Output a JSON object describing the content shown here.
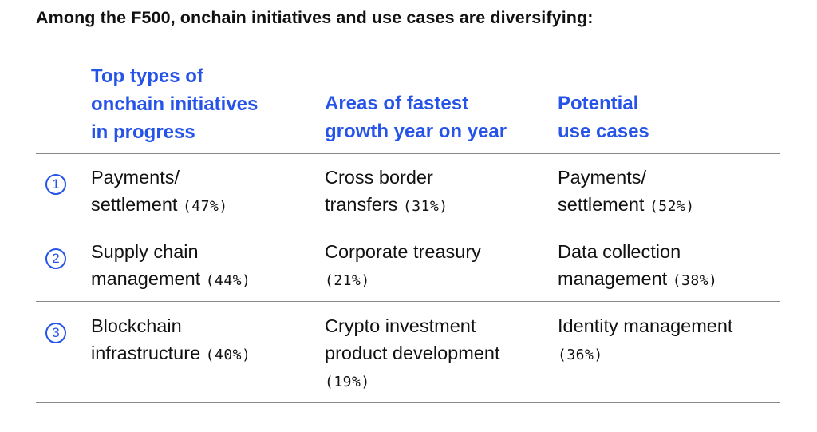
{
  "title": "Among the F500, onchain initiatives and use cases are diversifying:",
  "columns": [
    "Top types of\nonchain initiatives\nin progress",
    "Areas of fastest\ngrowth year on year",
    "Potential\nuse cases"
  ],
  "rows": [
    {
      "rank": "1",
      "cells": [
        {
          "lines": [
            "Payments/",
            "settlement"
          ],
          "pct": "(47%)"
        },
        {
          "lines": [
            "Cross border",
            "transfers"
          ],
          "pct": "(31%)"
        },
        {
          "lines": [
            "Payments/",
            "settlement"
          ],
          "pct": "(52%)"
        }
      ]
    },
    {
      "rank": "2",
      "cells": [
        {
          "lines": [
            "Supply chain",
            "management"
          ],
          "pct": "(44%)"
        },
        {
          "lines": [
            "Corporate treasury",
            ""
          ],
          "pct": "(21%)"
        },
        {
          "lines": [
            "Data collection",
            "management"
          ],
          "pct": "(38%)"
        }
      ]
    },
    {
      "rank": "3",
      "cells": [
        {
          "lines": [
            "Blockchain",
            "infrastructure"
          ],
          "pct": "(40%)"
        },
        {
          "lines": [
            "Crypto investment",
            "product development",
            ""
          ],
          "pct": "(19%)"
        },
        {
          "lines": [
            "Identity management",
            ""
          ],
          "pct": "(36%)"
        }
      ]
    }
  ]
}
